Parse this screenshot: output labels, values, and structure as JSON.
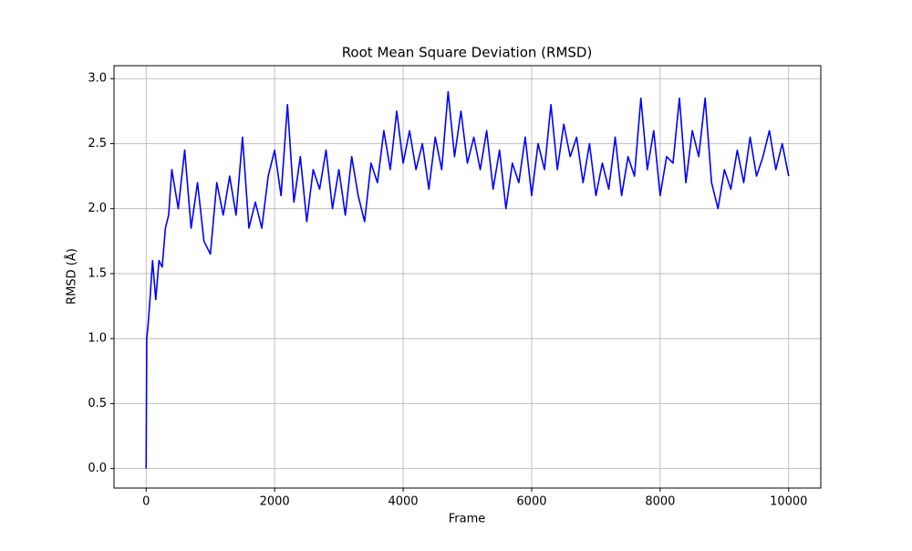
{
  "chart_data": {
    "type": "line",
    "title": "Root Mean Square Deviation (RMSD)",
    "xlabel": "Frame",
    "ylabel": "RMSD (Å)",
    "x": [
      0,
      10,
      30,
      60,
      100,
      150,
      200,
      250,
      300,
      350,
      400,
      500,
      600,
      700,
      800,
      900,
      1000,
      1100,
      1200,
      1300,
      1400,
      1500,
      1600,
      1700,
      1800,
      1900,
      2000,
      2100,
      2200,
      2300,
      2400,
      2500,
      2600,
      2700,
      2800,
      2900,
      3000,
      3100,
      3200,
      3300,
      3400,
      3500,
      3600,
      3700,
      3800,
      3900,
      4000,
      4100,
      4200,
      4300,
      4400,
      4500,
      4600,
      4700,
      4800,
      4900,
      5000,
      5100,
      5200,
      5300,
      5400,
      5500,
      5600,
      5700,
      5800,
      5900,
      6000,
      6100,
      6200,
      6300,
      6400,
      6500,
      6600,
      6700,
      6800,
      6900,
      7000,
      7100,
      7200,
      7300,
      7400,
      7500,
      7600,
      7700,
      7800,
      7900,
      8000,
      8100,
      8200,
      8300,
      8400,
      8500,
      8600,
      8700,
      8800,
      8900,
      9000,
      9100,
      9200,
      9300,
      9400,
      9500,
      9600,
      9700,
      9800,
      9900,
      10000
    ],
    "series": [
      {
        "name": "RMSD",
        "color": "#0000ff",
        "values": [
          0.0,
          1.0,
          1.1,
          1.3,
          1.6,
          1.3,
          1.6,
          1.55,
          1.85,
          1.95,
          2.3,
          2.0,
          2.45,
          1.85,
          2.2,
          1.75,
          1.65,
          2.2,
          1.95,
          2.25,
          1.95,
          2.55,
          1.85,
          2.05,
          1.85,
          2.25,
          2.45,
          2.1,
          2.8,
          2.05,
          2.4,
          1.9,
          2.3,
          2.15,
          2.45,
          2.0,
          2.3,
          1.95,
          2.4,
          2.1,
          1.9,
          2.35,
          2.2,
          2.6,
          2.3,
          2.75,
          2.35,
          2.6,
          2.3,
          2.5,
          2.15,
          2.55,
          2.3,
          2.9,
          2.4,
          2.75,
          2.35,
          2.55,
          2.3,
          2.6,
          2.15,
          2.45,
          2.0,
          2.35,
          2.2,
          2.55,
          2.1,
          2.5,
          2.3,
          2.8,
          2.3,
          2.65,
          2.4,
          2.55,
          2.2,
          2.5,
          2.1,
          2.35,
          2.15,
          2.55,
          2.1,
          2.4,
          2.25,
          2.85,
          2.3,
          2.6,
          2.1,
          2.4,
          2.35,
          2.85,
          2.2,
          2.6,
          2.4,
          2.85,
          2.2,
          2.0,
          2.3,
          2.15,
          2.45,
          2.2,
          2.55,
          2.25,
          2.4,
          2.6,
          2.3,
          2.5,
          2.25
        ]
      }
    ],
    "xlim": [
      -500,
      10500
    ],
    "xticks": [
      0,
      2000,
      4000,
      6000,
      8000,
      10000
    ],
    "ylim": [
      -0.15,
      3.1
    ],
    "yticks": [
      {
        "value": 0,
        "label": "0.0"
      },
      0.5,
      {
        "value": 1,
        "label": "1.0"
      },
      1.5,
      {
        "value": 2,
        "label": "2.0"
      },
      2.5,
      {
        "value": 3,
        "label": "3.0"
      }
    ],
    "grid": true
  }
}
